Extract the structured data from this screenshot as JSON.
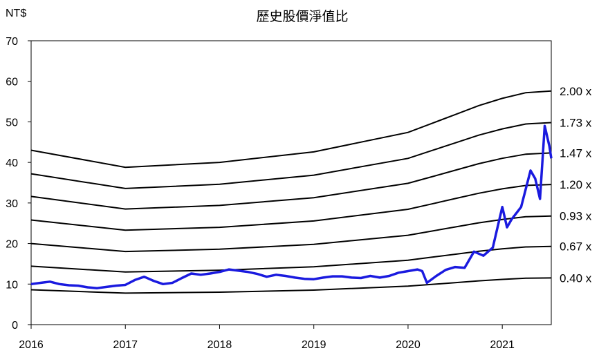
{
  "chart_data": {
    "type": "line",
    "title": "歷史股價淨值比",
    "y_unit_label": "NT$",
    "xlabel": "",
    "ylabel": "",
    "xlim": [
      2016.0,
      2021.52
    ],
    "ylim": [
      0,
      70
    ],
    "x_ticks": [
      2016,
      2017,
      2018,
      2019,
      2020,
      2021
    ],
    "x_tick_labels": [
      "2016",
      "2017",
      "2018",
      "2019",
      "2020",
      "2021"
    ],
    "y_ticks": [
      0,
      10,
      20,
      30,
      40,
      50,
      60,
      70
    ],
    "y_tick_labels": [
      "0",
      "10",
      "20",
      "30",
      "40",
      "50",
      "60",
      "70"
    ],
    "grid": false,
    "colors": {
      "price": "#1a1adf",
      "bands": "#000000"
    },
    "band_labels": [
      "2.00 x",
      "1.73 x",
      "1.47 x",
      "1.20 x",
      "0.93 x",
      "0.67 x",
      "0.40 x"
    ],
    "book_value": {
      "x": [
        2016.0,
        2017.0,
        2018.0,
        2019.0,
        2020.0,
        2020.25,
        2020.5,
        2020.75,
        2021.0,
        2021.25,
        2021.52
      ],
      "values": [
        21.5,
        19.4,
        20.0,
        21.3,
        23.7,
        24.8,
        25.9,
        27.0,
        27.9,
        28.6,
        28.8
      ]
    },
    "band_multiples": [
      2.0,
      1.73,
      1.47,
      1.2,
      0.93,
      0.67,
      0.4
    ],
    "series": [
      {
        "name": "",
        "x": [
          2016.0,
          2016.1,
          2016.2,
          2016.3,
          2016.4,
          2016.5,
          2016.6,
          2016.7,
          2016.8,
          2016.9,
          2017.0,
          2017.1,
          2017.2,
          2017.3,
          2017.4,
          2017.5,
          2017.6,
          2017.7,
          2017.8,
          2017.9,
          2018.0,
          2018.1,
          2018.2,
          2018.3,
          2018.4,
          2018.5,
          2018.6,
          2018.7,
          2018.8,
          2018.9,
          2019.0,
          2019.1,
          2019.2,
          2019.3,
          2019.4,
          2019.5,
          2019.6,
          2019.7,
          2019.8,
          2019.9,
          2020.0,
          2020.1,
          2020.15,
          2020.2,
          2020.3,
          2020.4,
          2020.5,
          2020.6,
          2020.7,
          2020.8,
          2020.9,
          2020.95,
          2021.0,
          2021.05,
          2021.1,
          2021.2,
          2021.3,
          2021.35,
          2021.4,
          2021.45,
          2021.5,
          2021.52
        ],
        "values": [
          10.0,
          10.3,
          10.6,
          10.0,
          9.7,
          9.6,
          9.2,
          9.0,
          9.3,
          9.6,
          9.8,
          11.0,
          11.8,
          10.8,
          10.0,
          10.3,
          11.5,
          12.6,
          12.3,
          12.6,
          13.0,
          13.6,
          13.3,
          13.0,
          12.5,
          11.8,
          12.3,
          12.0,
          11.6,
          11.3,
          11.2,
          11.6,
          11.9,
          11.9,
          11.6,
          11.5,
          12.0,
          11.6,
          12.0,
          12.8,
          13.2,
          13.6,
          13.2,
          10.3,
          12.0,
          13.5,
          14.2,
          14.0,
          18.0,
          17.0,
          19.0,
          24.0,
          29.0,
          24.0,
          26.0,
          29.0,
          38.0,
          36.0,
          31.0,
          49.0,
          44.0,
          41.0
        ]
      }
    ]
  }
}
